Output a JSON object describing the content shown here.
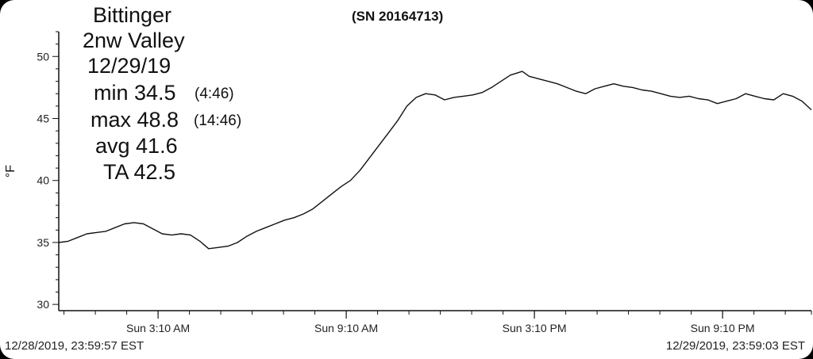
{
  "stats": {
    "site_line1": "Bittinger",
    "site_line2": "2nw Valley",
    "date": "12/29/19",
    "min_label": "min 34.5",
    "min_time": "(4:46)",
    "max_label": "max 48.8",
    "max_time": "(14:46)",
    "avg_label": "avg 41.6",
    "ta_label": "TA 42.5"
  },
  "serial": "(SN 20164713)",
  "footer": {
    "start": "12/28/2019, 23:59:57 EST",
    "end": "12/29/2019, 23:59:03 EST"
  },
  "chart_data": {
    "type": "line",
    "title": "",
    "xlabel": "",
    "ylabel": "°F",
    "ylim": [
      29.5,
      52
    ],
    "xlim_hours": [
      0,
      24
    ],
    "y_ticks": [
      30,
      35,
      40,
      45,
      50
    ],
    "x_tick_labels": [
      {
        "label": "Sun 3:10 AM",
        "hour": 3.1667
      },
      {
        "label": "Sun 9:10 AM",
        "hour": 9.1667
      },
      {
        "label": "Sun 3:10 PM",
        "hour": 15.1667
      },
      {
        "label": "Sun 9:10 PM",
        "hour": 21.1667
      }
    ],
    "grid": false,
    "legend": "none",
    "line_color": "#111111",
    "series": [
      {
        "x_hours": [
          0,
          0.3,
          0.6,
          0.9,
          1.2,
          1.5,
          1.8,
          2.1,
          2.4,
          2.7,
          3.0,
          3.3,
          3.6,
          3.9,
          4.2,
          4.5,
          4.78,
          5.1,
          5.4,
          5.7,
          6.0,
          6.3,
          6.6,
          6.9,
          7.2,
          7.5,
          7.8,
          8.1,
          8.4,
          8.7,
          9.0,
          9.3,
          9.6,
          9.9,
          10.2,
          10.5,
          10.8,
          11.1,
          11.4,
          11.7,
          12.0,
          12.3,
          12.6,
          12.9,
          13.2,
          13.5,
          13.8,
          14.1,
          14.4,
          14.78,
          15.0,
          15.3,
          15.6,
          15.9,
          16.2,
          16.5,
          16.8,
          17.1,
          17.4,
          17.7,
          18.0,
          18.3,
          18.6,
          18.9,
          19.2,
          19.5,
          19.8,
          20.1,
          20.4,
          20.7,
          21.0,
          21.3,
          21.6,
          21.9,
          22.2,
          22.5,
          22.8,
          23.1,
          23.4,
          23.7,
          24.0
        ],
        "y": [
          35.0,
          35.1,
          35.4,
          35.7,
          35.8,
          35.9,
          36.2,
          36.5,
          36.6,
          36.5,
          36.1,
          35.7,
          35.6,
          35.7,
          35.6,
          35.1,
          34.5,
          34.6,
          34.7,
          35.0,
          35.5,
          35.9,
          36.2,
          36.5,
          36.8,
          37.0,
          37.3,
          37.7,
          38.3,
          38.9,
          39.5,
          40.0,
          40.8,
          41.8,
          42.8,
          43.8,
          44.8,
          46.0,
          46.7,
          47.0,
          46.9,
          46.5,
          46.7,
          46.8,
          46.9,
          47.1,
          47.5,
          48.0,
          48.5,
          48.8,
          48.4,
          48.2,
          48.0,
          47.8,
          47.5,
          47.2,
          47.0,
          47.4,
          47.6,
          47.8,
          47.6,
          47.5,
          47.3,
          47.2,
          47.0,
          46.8,
          46.7,
          46.8,
          46.6,
          46.5,
          46.2,
          46.4,
          46.6,
          47.0,
          46.8,
          46.6,
          46.5,
          47.0,
          46.8,
          46.4,
          45.7
        ]
      }
    ]
  }
}
